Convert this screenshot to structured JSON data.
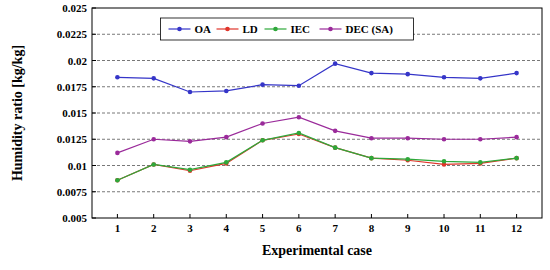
{
  "chart_data": {
    "type": "line",
    "x_label": "Experimental case",
    "y_label": "Humidity ratio [kg/kg]",
    "categories": [
      "1",
      "2",
      "3",
      "4",
      "5",
      "6",
      "7",
      "8",
      "9",
      "10",
      "11",
      "12"
    ],
    "series": [
      {
        "name": "OA",
        "color": "#3535c8",
        "marker": "circle",
        "values": [
          0.0184,
          0.0183,
          0.017,
          0.0171,
          0.0177,
          0.0176,
          0.0197,
          0.0188,
          0.0187,
          0.0184,
          0.0183,
          0.0188
        ]
      },
      {
        "name": "LD",
        "color": "#e0352b",
        "marker": "circle",
        "values": [
          0.0086,
          0.0101,
          0.0095,
          0.0102,
          0.0124,
          0.013,
          0.0117,
          0.0107,
          0.0105,
          0.0101,
          0.0102,
          0.0107
        ]
      },
      {
        "name": "IEC",
        "color": "#2ea83a",
        "marker": "circle",
        "values": [
          0.0086,
          0.0101,
          0.0096,
          0.0103,
          0.0124,
          0.0131,
          0.0117,
          0.0107,
          0.0106,
          0.0104,
          0.0103,
          0.0107
        ]
      },
      {
        "name": "DEC (SA)",
        "color": "#9a2a9a",
        "marker": "circle",
        "values": [
          0.0112,
          0.0125,
          0.0123,
          0.0127,
          0.014,
          0.0146,
          0.0133,
          0.0126,
          0.0126,
          0.0125,
          0.0125,
          0.0127
        ]
      }
    ],
    "ylim": [
      0.005,
      0.025
    ],
    "yticks": [
      0.005,
      0.0075,
      0.01,
      0.0125,
      0.015,
      0.0175,
      0.02,
      0.0225,
      0.025
    ],
    "grid": true,
    "legend": "top"
  }
}
